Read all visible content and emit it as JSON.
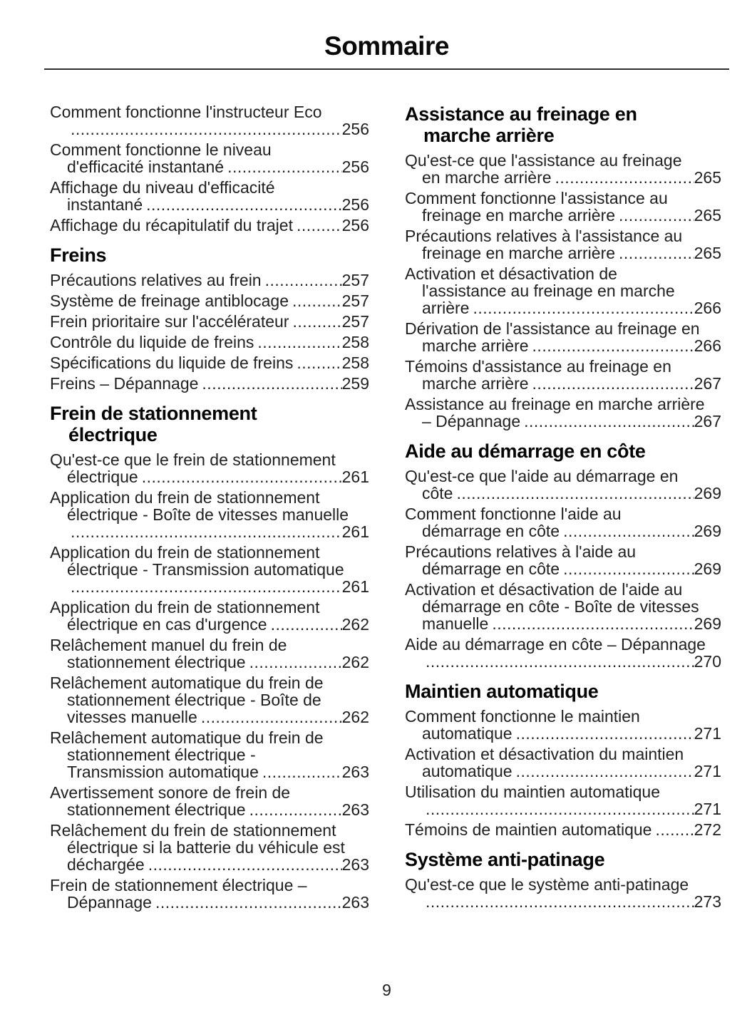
{
  "title": "Sommaire",
  "page_number": "9",
  "columns": [
    {
      "sections": [
        {
          "heading_lines": [],
          "entries": [
            {
              "pre": [
                "Comment fonctionne l'instructeur Eco"
              ],
              "last": "",
              "page": "256"
            },
            {
              "pre": [
                "Comment fonctionne le niveau"
              ],
              "last": "d'efficacité instantané",
              "page": "256"
            },
            {
              "pre": [
                "Affichage du niveau d'efficacité"
              ],
              "last": "instantané",
              "page": "256"
            },
            {
              "pre": [],
              "last": "Affichage du récapitulatif du trajet",
              "page": "256"
            }
          ]
        },
        {
          "heading_lines": [
            "Freins"
          ],
          "entries": [
            {
              "pre": [],
              "last": "Précautions relatives au frein",
              "page": "257"
            },
            {
              "pre": [],
              "last": "Système de freinage antiblocage",
              "page": "257"
            },
            {
              "pre": [],
              "last": "Frein prioritaire sur l'accélérateur",
              "page": "257"
            },
            {
              "pre": [],
              "last": "Contrôle du liquide de freins",
              "page": "258"
            },
            {
              "pre": [],
              "last": "Spécifications du liquide de freins",
              "page": "258"
            },
            {
              "pre": [],
              "last": "Freins – Dépannage",
              "page": "259"
            }
          ]
        },
        {
          "heading_lines": [
            "Frein de stationnement",
            "électrique"
          ],
          "entries": [
            {
              "pre": [
                "Qu'est-ce que le frein de stationnement"
              ],
              "last": "électrique",
              "page": "261"
            },
            {
              "pre": [
                "Application du frein de stationnement",
                "électrique - Boîte de vitesses manuelle"
              ],
              "last": "",
              "page": "261"
            },
            {
              "pre": [
                "Application du frein de stationnement",
                "électrique - Transmission automatique"
              ],
              "last": "",
              "page": "261"
            },
            {
              "pre": [
                "Application du frein de stationnement"
              ],
              "last": "électrique en cas d'urgence",
              "page": "262"
            },
            {
              "pre": [
                "Relâchement manuel du frein de"
              ],
              "last": "stationnement électrique",
              "page": "262"
            },
            {
              "pre": [
                "Relâchement automatique du frein de",
                "stationnement électrique - Boîte de"
              ],
              "last": "vitesses manuelle",
              "page": "262"
            },
            {
              "pre": [
                "Relâchement automatique du frein de",
                "stationnement électrique -"
              ],
              "last": "Transmission automatique",
              "page": "263"
            },
            {
              "pre": [
                "Avertissement sonore de frein de"
              ],
              "last": "stationnement électrique",
              "page": "263"
            },
            {
              "pre": [
                "Relâchement du frein de stationnement",
                "électrique si la batterie du véhicule est"
              ],
              "last": "déchargée",
              "page": "263"
            },
            {
              "pre": [
                "Frein de stationnement électrique –"
              ],
              "last": "Dépannage",
              "page": "263"
            }
          ]
        }
      ]
    },
    {
      "sections": [
        {
          "heading_lines": [
            "Assistance au freinage en",
            "marche arrière"
          ],
          "entries": [
            {
              "pre": [
                "Qu'est-ce que l'assistance au freinage"
              ],
              "last": "en marche arrière",
              "page": "265"
            },
            {
              "pre": [
                "Comment fonctionne l'assistance au"
              ],
              "last": "freinage en marche arrière",
              "page": "265"
            },
            {
              "pre": [
                "Précautions relatives à l'assistance au"
              ],
              "last": "freinage en marche arrière",
              "page": "265"
            },
            {
              "pre": [
                "Activation et désactivation de",
                "l'assistance au freinage en marche"
              ],
              "last": "arrière",
              "page": "266"
            },
            {
              "pre": [
                "Dérivation de l'assistance au freinage en"
              ],
              "last": "marche arrière",
              "page": "266"
            },
            {
              "pre": [
                "Témoins d'assistance au freinage en"
              ],
              "last": "marche arrière",
              "page": "267"
            },
            {
              "pre": [
                "Assistance au freinage en marche arrière"
              ],
              "last": "– Dépannage",
              "page": "267"
            }
          ]
        },
        {
          "heading_lines": [
            "Aide au démarrage en côte"
          ],
          "entries": [
            {
              "pre": [
                "Qu'est-ce que l'aide au démarrage en"
              ],
              "last": "côte",
              "page": "269"
            },
            {
              "pre": [
                "Comment fonctionne l'aide au"
              ],
              "last": "démarrage en côte",
              "page": "269"
            },
            {
              "pre": [
                "Précautions relatives à l'aide au"
              ],
              "last": "démarrage en côte",
              "page": "269"
            },
            {
              "pre": [
                "Activation et désactivation de l'aide au",
                "démarrage en côte - Boîte de vitesses"
              ],
              "last": "manuelle",
              "page": "269"
            },
            {
              "pre": [
                "Aide au démarrage en côte – Dépannage"
              ],
              "last": "",
              "page": "270"
            }
          ]
        },
        {
          "heading_lines": [
            "Maintien automatique"
          ],
          "entries": [
            {
              "pre": [
                "Comment fonctionne le maintien"
              ],
              "last": "automatique",
              "page": "271"
            },
            {
              "pre": [
                "Activation et désactivation du maintien"
              ],
              "last": "automatique",
              "page": "271"
            },
            {
              "pre": [
                "Utilisation du maintien automatique"
              ],
              "last": "",
              "page": "271"
            },
            {
              "pre": [],
              "last": "Témoins de maintien automatique",
              "page": "272"
            }
          ]
        },
        {
          "heading_lines": [
            "Système anti-patinage"
          ],
          "entries": [
            {
              "pre": [
                "Qu'est-ce que le système anti-patinage"
              ],
              "last": "",
              "page": "273"
            }
          ]
        }
      ]
    }
  ]
}
